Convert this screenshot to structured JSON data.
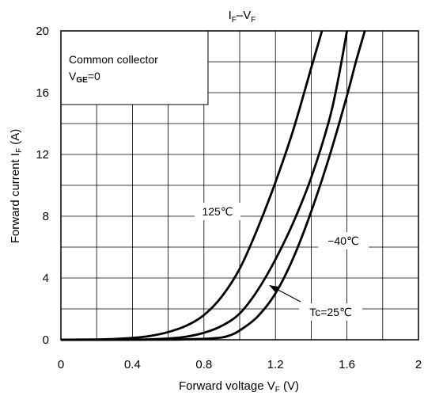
{
  "chart_data": {
    "type": "line",
    "title": {
      "main": "I",
      "sub1": "F",
      "sep": "–V",
      "sub2": "F"
    },
    "xlabel": {
      "main": "Forward voltage  V",
      "sub": "F",
      "unit": " (V)"
    },
    "ylabel": {
      "main": "Forward current  I",
      "sub": "F",
      "unit": " (A)"
    },
    "xlim": [
      0,
      2
    ],
    "ylim": [
      0,
      20
    ],
    "grid": true,
    "xticks": [
      0,
      0.4,
      0.8,
      1.2,
      1.6,
      2
    ],
    "xtick_labels": [
      "0",
      "0.4",
      "0.8",
      "1.2",
      "1.6",
      "2"
    ],
    "yticks": [
      0,
      4,
      8,
      12,
      16,
      20
    ],
    "ytick_labels": [
      "0",
      "4",
      "8",
      "12",
      "16",
      "20"
    ],
    "legend_box": {
      "line1": "Common collector",
      "line2_main": "V",
      "line2_sub": "GE",
      "line2_rest": "=0"
    },
    "series": [
      {
        "name": "125℃",
        "x": [
          0.0,
          0.2,
          0.3,
          0.4,
          0.5,
          0.6,
          0.7,
          0.8,
          0.9,
          1.0,
          1.1,
          1.2,
          1.3,
          1.4,
          1.46
        ],
        "y": [
          0.0,
          0.02,
          0.05,
          0.12,
          0.25,
          0.5,
          0.9,
          1.6,
          2.8,
          4.6,
          7.2,
          10.2,
          13.6,
          17.6,
          20.0
        ]
      },
      {
        "name": "Tc=25℃",
        "x": [
          0.0,
          0.4,
          0.5,
          0.6,
          0.7,
          0.8,
          0.9,
          1.0,
          1.1,
          1.2,
          1.3,
          1.4,
          1.5,
          1.55,
          1.6
        ],
        "y": [
          0.0,
          0.01,
          0.03,
          0.08,
          0.2,
          0.45,
          0.9,
          1.7,
          3.2,
          5.2,
          7.6,
          10.5,
          14.2,
          16.8,
          20.0
        ]
      },
      {
        "name": "−40℃",
        "x": [
          0.0,
          0.6,
          0.7,
          0.8,
          0.9,
          0.95,
          1.0,
          1.1,
          1.2,
          1.3,
          1.4,
          1.5,
          1.6,
          1.65,
          1.7
        ],
        "y": [
          0.0,
          0.01,
          0.03,
          0.06,
          0.15,
          0.3,
          0.6,
          1.5,
          3.0,
          5.3,
          8.3,
          11.8,
          15.8,
          18.0,
          20.0
        ]
      }
    ],
    "annotations": [
      {
        "text": "125℃"
      },
      {
        "text": "−40℃"
      },
      {
        "text": "Tc=25℃"
      }
    ]
  }
}
